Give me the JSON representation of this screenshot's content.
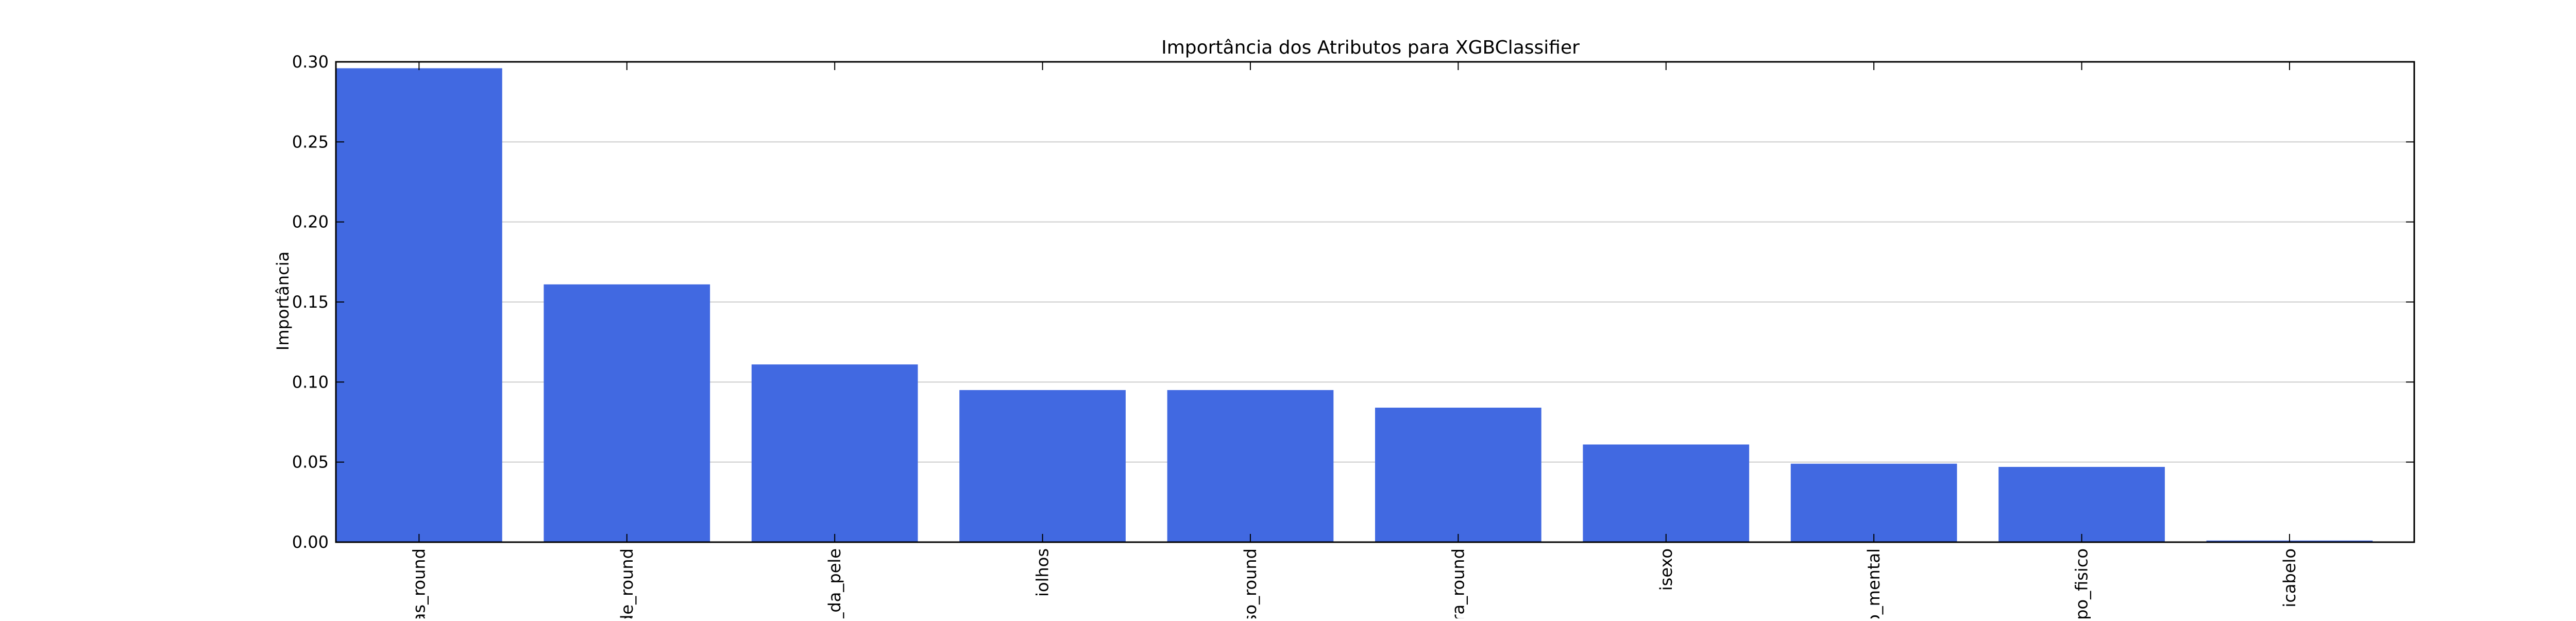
{
  "chart_data": {
    "type": "bar",
    "title": "Importância dos Atributos para XGBClassifier",
    "xlabel": "",
    "ylabel": "Importância",
    "categories": [
      "ias_round",
      "de_round",
      "r_da_pele",
      "iolhos",
      "eso_round",
      "ura_round",
      "isexo",
      "no_mental",
      "tipo_fisico",
      "icabelo"
    ],
    "values": [
      0.296,
      0.161,
      0.111,
      0.095,
      0.095,
      0.084,
      0.061,
      0.049,
      0.047,
      0.001
    ],
    "ylim": [
      0,
      0.3
    ],
    "yticks": [
      "0.00",
      "0.05",
      "0.10",
      "0.15",
      "0.20",
      "0.25",
      "0.30"
    ],
    "grid": true,
    "bar_color": "#4169e1",
    "grid_color": "#cccccc"
  }
}
